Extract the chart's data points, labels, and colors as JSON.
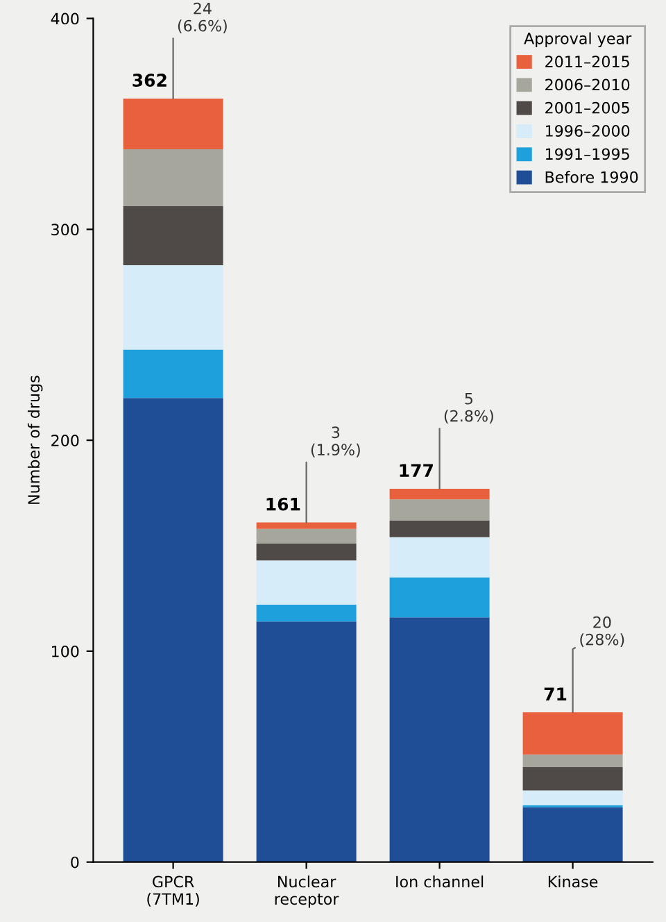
{
  "chart_data": {
    "type": "bar",
    "stacked": true,
    "ylabel": "Number of drugs",
    "legend_title": "Approval year",
    "legend": "top right",
    "categories": [
      "GPCR\n(7TM1)",
      "Nuclear\nreceptor",
      "Ion channel",
      "Kinase"
    ],
    "ylim": [
      0,
      400
    ],
    "yticks": [
      0,
      100,
      200,
      300,
      400
    ],
    "grid": false,
    "series": [
      {
        "name": "Before 1990",
        "color": "#1f4e96",
        "values": [
          220,
          114,
          116,
          26
        ]
      },
      {
        "name": "1991–1995",
        "color": "#1ea0dc",
        "values": [
          23,
          8,
          19,
          1
        ]
      },
      {
        "name": "1996–2000",
        "color": "#d6ecf8",
        "values": [
          40,
          21,
          19,
          7
        ]
      },
      {
        "name": "2001–2005",
        "color": "#4f4a47",
        "values": [
          28,
          8,
          8,
          11
        ]
      },
      {
        "name": "2006–2010",
        "color": "#a6a69c",
        "values": [
          27,
          7,
          10,
          6
        ]
      },
      {
        "name": "2011–2015",
        "color": "#e8603c",
        "values": [
          24,
          3,
          5,
          20
        ]
      }
    ],
    "totals": [
      "362",
      "161",
      "177",
      "71"
    ],
    "annotations": [
      {
        "text": "24\n(6.6%)",
        "x": "GPCR\n(7TM1)",
        "y": 362
      },
      {
        "text": "3\n(1.9%)",
        "x": "Nuclear\nreceptor",
        "y": 161
      },
      {
        "text": "5\n(2.8%)",
        "x": "Ion channel",
        "y": 177
      },
      {
        "text": "20\n(28%)",
        "x": "Kinase",
        "y": 71
      }
    ]
  }
}
